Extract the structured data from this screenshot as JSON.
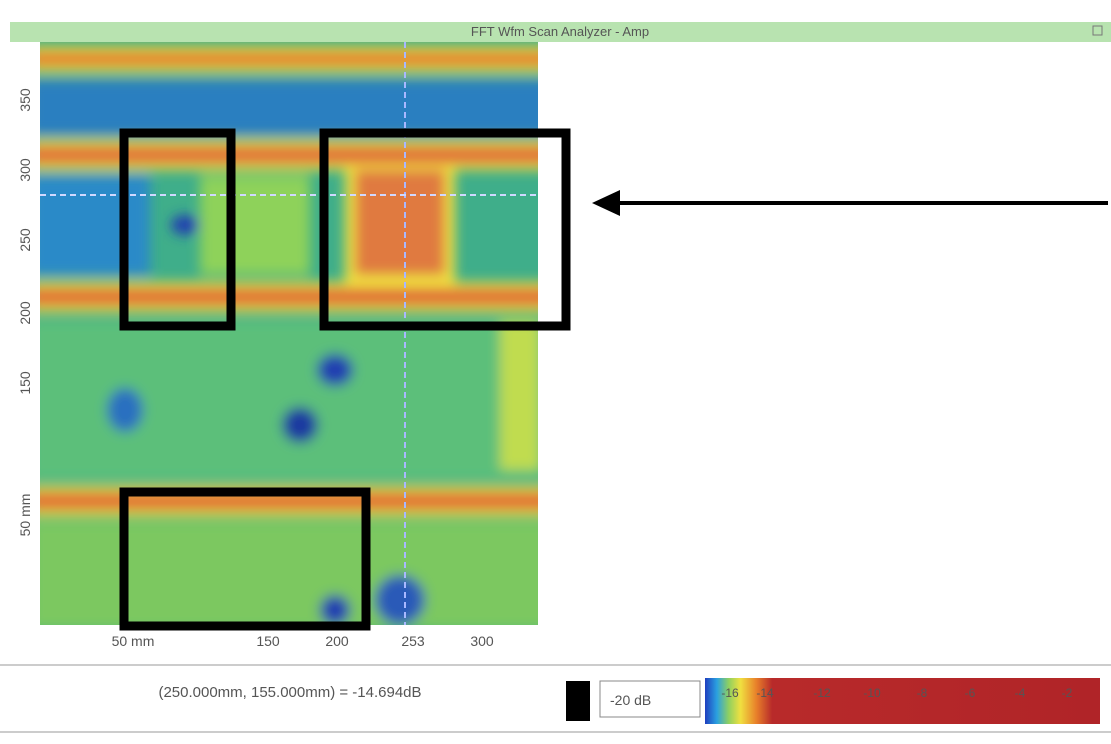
{
  "window": {
    "title": "FFT Wfm Scan Analyzer - Amp"
  },
  "plot": {
    "y_labels": [
      "350",
      "300",
      "250",
      "200",
      "150",
      "50 mm"
    ],
    "x_labels": [
      "50 mm",
      "150",
      "200",
      "253",
      "300"
    ]
  },
  "status": {
    "readout": "(250.000mm, 155.000mm) = -14.694dB"
  },
  "colorbar": {
    "min_label": "-20 dB",
    "ticks": [
      "-16",
      "-14",
      "-12",
      "-10",
      "-8",
      "-6",
      "-4",
      "-2"
    ]
  }
}
